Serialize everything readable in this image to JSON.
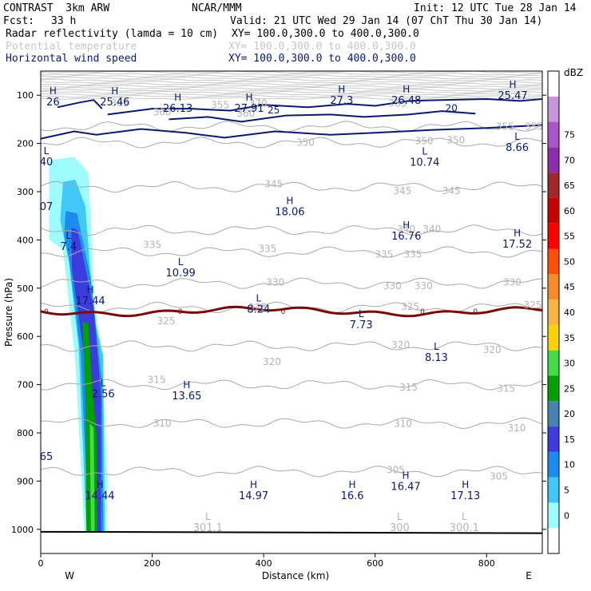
{
  "header": {
    "model": "CONTRAST  3km ARW",
    "org": "NCAR/MMM",
    "init": "Init: 12 UTC Tue 28 Jan 14",
    "fcst_label": "Fcst:",
    "fcst_value": "33 h",
    "valid": "Valid: 21 UTC Wed 29 Jan 14 (07 ChT Thu 30 Jan 14)",
    "fields": [
      {
        "name": "Radar reflectivity (lamda = 10 cm)",
        "xy": "XY= 100.0,300.0 to 400.0,300.0"
      },
      {
        "name": "Potential temperature",
        "xy": "XY= 100.0,300.0 to 400.0,300.0"
      },
      {
        "name": "Horizontal wind speed",
        "xy": "XY= 100.0,300.0 to 400.0,300.0"
      }
    ]
  },
  "chart_data": {
    "type": "cross-section",
    "xlabel": "Distance (km)",
    "ylabel": "Pressure (hPa)",
    "xlim": [
      0,
      900
    ],
    "ylim": [
      1050,
      50
    ],
    "x_ticks": [
      "0",
      "200",
      "400",
      "600",
      "800"
    ],
    "y_ticks": [
      "100",
      "200",
      "300",
      "400",
      "500",
      "600",
      "700",
      "800",
      "900",
      "1000"
    ],
    "x_ends": {
      "left": "W",
      "right": "E"
    },
    "colorbar": {
      "unit": "dBZ",
      "levels": [
        "0",
        "5",
        "10",
        "15",
        "20",
        "25",
        "30",
        "35",
        "40",
        "45",
        "50",
        "55",
        "60",
        "65",
        "70",
        "75"
      ],
      "colors": [
        "#ffffff",
        "#9ffcfc",
        "#3fc8f8",
        "#1a8cf0",
        "#3c3cdc",
        "#4682b4",
        "#00a000",
        "#46dc46",
        "#fad200",
        "#fab446",
        "#fa8c28",
        "#ff5000",
        "#ff0000",
        "#c80000",
        "#a02828",
        "#8c2dac",
        "#aa55c8",
        "#c896dc",
        "#ffffff"
      ]
    },
    "theta_labels": [
      {
        "x": 142,
        "p": 116,
        "t": "365"
      },
      {
        "x": 390,
        "p": 117,
        "t": "370"
      },
      {
        "x": 640,
        "p": 117,
        "t": "365"
      },
      {
        "x": 218,
        "p": 135,
        "t": "360"
      },
      {
        "x": 322,
        "p": 120,
        "t": "355"
      },
      {
        "x": 368,
        "p": 138,
        "t": "360"
      },
      {
        "x": 833,
        "p": 165,
        "t": "355"
      },
      {
        "x": 885,
        "p": 165,
        "t": "355"
      },
      {
        "x": 475,
        "p": 198,
        "t": "350"
      },
      {
        "x": 688,
        "p": 195,
        "t": "350"
      },
      {
        "x": 745,
        "p": 193,
        "t": "350"
      },
      {
        "x": 418,
        "p": 284,
        "t": "345"
      },
      {
        "x": 649,
        "p": 298,
        "t": "345"
      },
      {
        "x": 737,
        "p": 298,
        "t": "345"
      },
      {
        "x": 656,
        "p": 378,
        "t": "340"
      },
      {
        "x": 702,
        "p": 378,
        "t": "340"
      },
      {
        "x": 200,
        "p": 410,
        "t": "335"
      },
      {
        "x": 407,
        "p": 418,
        "t": "335"
      },
      {
        "x": 616,
        "p": 430,
        "t": "335"
      },
      {
        "x": 668,
        "p": 430,
        "t": "335"
      },
      {
        "x": 421,
        "p": 488,
        "t": "330"
      },
      {
        "x": 631,
        "p": 495,
        "t": "330"
      },
      {
        "x": 687,
        "p": 495,
        "t": "330"
      },
      {
        "x": 846,
        "p": 488,
        "t": "330"
      },
      {
        "x": 389,
        "p": 540,
        "t": "325"
      },
      {
        "x": 225,
        "p": 568,
        "t": "325"
      },
      {
        "x": 663,
        "p": 538,
        "t": "325"
      },
      {
        "x": 883,
        "p": 535,
        "t": "325"
      },
      {
        "x": 415,
        "p": 653,
        "t": "320"
      },
      {
        "x": 646,
        "p": 618,
        "t": "320"
      },
      {
        "x": 810,
        "p": 628,
        "t": "320"
      },
      {
        "x": 208,
        "p": 690,
        "t": "315"
      },
      {
        "x": 660,
        "p": 706,
        "t": "315"
      },
      {
        "x": 835,
        "p": 708,
        "t": "315"
      },
      {
        "x": 218,
        "p": 780,
        "t": "310"
      },
      {
        "x": 650,
        "p": 781,
        "t": "310"
      },
      {
        "x": 854,
        "p": 790,
        "t": "310"
      },
      {
        "x": 637,
        "p": 877,
        "t": "305"
      },
      {
        "x": 822,
        "p": 890,
        "t": "305"
      }
    ],
    "wind_labels": [
      {
        "x": 22,
        "p": 98,
        "s": "H",
        "v": "26"
      },
      {
        "x": 133,
        "p": 98,
        "s": "H",
        "v": "25.46"
      },
      {
        "x": 246,
        "p": 111,
        "s": "H",
        "v": "26.13"
      },
      {
        "x": 374,
        "p": 111,
        "s": "H",
        "v": "27.91"
      },
      {
        "x": 540,
        "p": 95,
        "s": "H",
        "v": "27.3"
      },
      {
        "x": 656,
        "p": 95,
        "s": "H",
        "v": "26.48"
      },
      {
        "x": 847,
        "p": 85,
        "s": "H",
        "v": "25.47"
      },
      {
        "x": 10,
        "p": 222,
        "s": "L",
        "v": "40"
      },
      {
        "x": 689,
        "p": 223,
        "s": "L",
        "v": "10.74"
      },
      {
        "x": 855,
        "p": 192,
        "s": "L",
        "v": "8.66"
      },
      {
        "x": 10,
        "p": 315,
        "s": "",
        "v": "07"
      },
      {
        "x": 447,
        "p": 326,
        "s": "H",
        "v": "18.06"
      },
      {
        "x": 656,
        "p": 376,
        "s": "H",
        "v": "16.76"
      },
      {
        "x": 855,
        "p": 393,
        "s": "H",
        "v": "17.52"
      },
      {
        "x": 50,
        "p": 398,
        "s": "L",
        "v": "7.4"
      },
      {
        "x": 251,
        "p": 452,
        "s": "L",
        "v": "10.99"
      },
      {
        "x": 89,
        "p": 510,
        "s": "H",
        "v": "17.44"
      },
      {
        "x": 391,
        "p": 528,
        "s": "L",
        "v": "8.24"
      },
      {
        "x": 575,
        "p": 560,
        "s": "L",
        "v": "7.73"
      },
      {
        "x": 710,
        "p": 628,
        "s": "L",
        "v": "8.13"
      },
      {
        "x": 112,
        "p": 703,
        "s": "L",
        "v": "2.56"
      },
      {
        "x": 262,
        "p": 707,
        "s": "H",
        "v": "13.65"
      },
      {
        "x": 10,
        "p": 833,
        "s": "",
        "v": "65"
      },
      {
        "x": 106,
        "p": 914,
        "s": "H",
        "v": "14.44"
      },
      {
        "x": 382,
        "p": 914,
        "s": "H",
        "v": "14.97"
      },
      {
        "x": 559,
        "p": 914,
        "s": "H",
        "v": "16.6"
      },
      {
        "x": 655,
        "p": 895,
        "s": "H",
        "v": "16.47"
      },
      {
        "x": 762,
        "p": 914,
        "s": "H",
        "v": "17.13"
      }
    ],
    "theta_low_labels": [
      {
        "x": 300,
        "p": 1000,
        "s": "L",
        "v": "301.1"
      },
      {
        "x": 644,
        "p": 1000,
        "s": "L",
        "v": "300"
      },
      {
        "x": 760,
        "p": 1000,
        "s": "L",
        "v": "300.1"
      }
    ],
    "wind_contour_labels": [
      {
        "x": 418,
        "p": 131,
        "t": "25"
      },
      {
        "x": 737,
        "p": 127,
        "t": "20"
      }
    ],
    "freezing_line_label": "0"
  }
}
